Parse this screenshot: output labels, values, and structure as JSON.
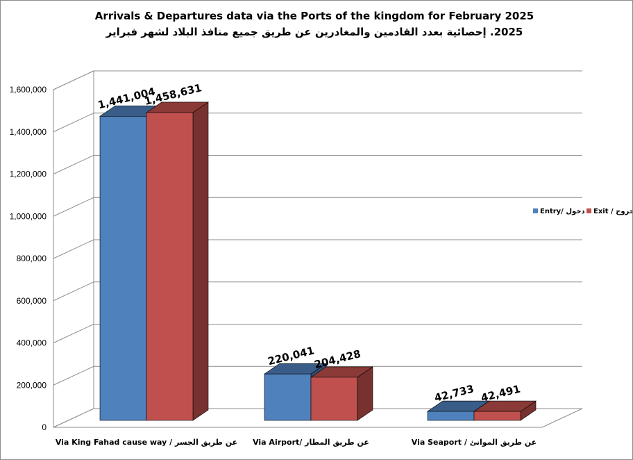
{
  "chart_data": {
    "type": "bar",
    "title": "Arrivals & Departures data via the Ports of the kingdom for February 2025",
    "subtitle": "2025. إحصائية بعدد القادمين والمغادرين عن طريق جميع منافذ البلاد لشهر فبراير",
    "categories": [
      "Via King Fahad cause way / عن طريق الجسر",
      "Via Airport/ عن طريق المطار",
      "Via Seaport / عن طريق الموانئ"
    ],
    "series": [
      {
        "name": "Entry/ دخول",
        "color": "#4f81bd",
        "values": [
          1441004,
          220041,
          42733
        ],
        "labels": [
          "1,441,004",
          "220,041",
          "42,733"
        ]
      },
      {
        "name": "Exit / خروج",
        "color": "#c0504d",
        "values": [
          1458631,
          204428,
          42491
        ],
        "labels": [
          "1,458,631",
          "204,428",
          "42,491"
        ]
      }
    ],
    "ylim": [
      0,
      1600000
    ],
    "yticks": [
      0,
      200000,
      400000,
      600000,
      800000,
      1000000,
      1200000,
      1400000,
      1600000
    ],
    "ytick_labels": [
      "0",
      "200,000",
      "400,000",
      "600,000",
      "800,000",
      "1,000,000",
      "1,200,000",
      "1,400,000",
      "1,600,000"
    ],
    "legend_position": "right",
    "grid": true,
    "style": "3d-clustered-column"
  }
}
